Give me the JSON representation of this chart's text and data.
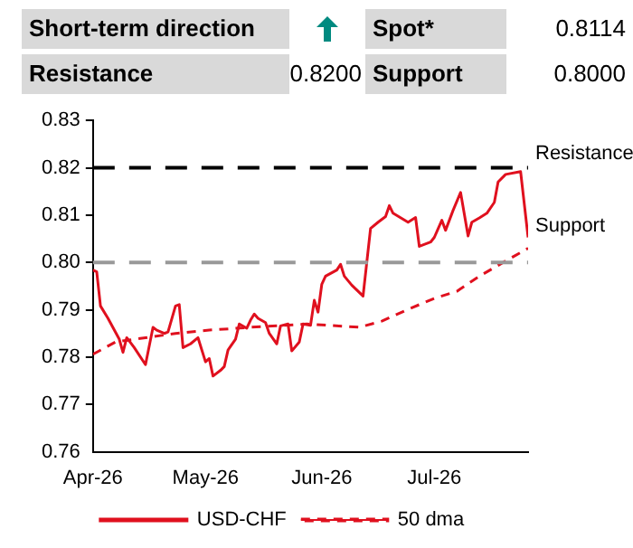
{
  "chart_data": {
    "type": "line",
    "annotations": [
      "Short-term direction",
      "Spot*",
      "0.8114",
      "Resistance",
      "0.8200",
      "Support",
      "0.8000"
    ],
    "xlim": [
      "2026-04-01",
      "2026-07-26"
    ],
    "xticks": [
      {
        "value": "2026-04-01",
        "label": "Apr-26"
      },
      {
        "value": "2026-05-01",
        "label": "May-26"
      },
      {
        "value": "2026-06-01",
        "label": "Jun-26"
      },
      {
        "value": "2026-07-01",
        "label": "Jul-26"
      }
    ],
    "ylim": [
      0.76,
      0.83
    ],
    "yticks": [
      0.76,
      0.77,
      0.78,
      0.79,
      {
        "value": 0.8,
        "label": "0.80"
      },
      0.81,
      0.82,
      0.83
    ],
    "grid": false,
    "legend": "bottom",
    "marker": "none",
    "ref_lines": [
      {
        "axis": "y",
        "value": 0.82,
        "label": "Resistance",
        "color": "#000000",
        "line_style": "dashed"
      },
      {
        "axis": "y",
        "value": 0.8,
        "label": "Support",
        "color": "#999999",
        "line_style": "dashed"
      }
    ],
    "series": [
      {
        "name": "USD-CHF",
        "color": "#e0101e",
        "line_style": "solid",
        "x": [
          "2026-04-01",
          "2026-04-02",
          "2026-04-03",
          "2026-04-05",
          "2026-04-08",
          "2026-04-09",
          "2026-04-10",
          "2026-04-12",
          "2026-04-15",
          "2026-04-17",
          "2026-04-18",
          "2026-04-20",
          "2026-04-21",
          "2026-04-23",
          "2026-04-24",
          "2026-04-25",
          "2026-04-27",
          "2026-04-29",
          "2026-05-01",
          "2026-05-02",
          "2026-05-03",
          "2026-05-05",
          "2026-05-06",
          "2026-05-07",
          "2026-05-09",
          "2026-05-10",
          "2026-05-12",
          "2026-05-13",
          "2026-05-14",
          "2026-05-15",
          "2026-05-17",
          "2026-05-18",
          "2026-05-20",
          "2026-05-21",
          "2026-05-23",
          "2026-05-24",
          "2026-05-26",
          "2026-05-27",
          "2026-05-29",
          "2026-05-30",
          "2026-05-31",
          "2026-06-01",
          "2026-06-02",
          "2026-06-05",
          "2026-06-06",
          "2026-06-07",
          "2026-06-09",
          "2026-06-12",
          "2026-06-14",
          "2026-06-16",
          "2026-06-18",
          "2026-06-19",
          "2026-06-20",
          "2026-06-24",
          "2026-06-26",
          "2026-06-27",
          "2026-06-30",
          "2026-07-01",
          "2026-07-03",
          "2026-07-04",
          "2026-07-06",
          "2026-07-08",
          "2026-07-10",
          "2026-07-11",
          "2026-07-13",
          "2026-07-15",
          "2026-07-17",
          "2026-07-18",
          "2026-07-20",
          "2026-07-24",
          "2026-07-26"
        ],
        "values": [
          0.7984,
          0.798,
          0.7908,
          0.7882,
          0.7838,
          0.781,
          0.7841,
          0.782,
          0.7784,
          0.7863,
          0.7857,
          0.785,
          0.7853,
          0.7908,
          0.7911,
          0.782,
          0.7828,
          0.7841,
          0.779,
          0.7797,
          0.776,
          0.7772,
          0.778,
          0.7815,
          0.7838,
          0.787,
          0.7861,
          0.7878,
          0.7891,
          0.7882,
          0.7873,
          0.785,
          0.7828,
          0.7866,
          0.787,
          0.7813,
          0.7832,
          0.787,
          0.7867,
          0.792,
          0.7895,
          0.7954,
          0.7971,
          0.7984,
          0.7996,
          0.7971,
          0.7952,
          0.7929,
          0.8072,
          0.8085,
          0.8097,
          0.812,
          0.8104,
          0.8085,
          0.8095,
          0.8034,
          0.8043,
          0.8053,
          0.8089,
          0.8068,
          0.811,
          0.8148,
          0.8056,
          0.8085,
          0.8094,
          0.8104,
          0.8127,
          0.817,
          0.8186,
          0.8192,
          0.8053
        ]
      },
      {
        "name": "50 dma",
        "color": "#e0101e",
        "line_style": "dashed",
        "x": [
          "2026-04-01",
          "2026-04-07",
          "2026-04-15",
          "2026-04-23",
          "2026-05-02",
          "2026-05-13",
          "2026-05-28",
          "2026-06-11",
          "2026-06-17",
          "2026-06-24",
          "2026-07-01",
          "2026-07-07",
          "2026-07-13",
          "2026-07-20",
          "2026-07-26"
        ],
        "values": [
          0.7806,
          0.7832,
          0.7841,
          0.785,
          0.7857,
          0.7863,
          0.787,
          0.7863,
          0.7876,
          0.7901,
          0.7924,
          0.7939,
          0.7971,
          0.8003,
          0.803
        ]
      }
    ]
  }
}
